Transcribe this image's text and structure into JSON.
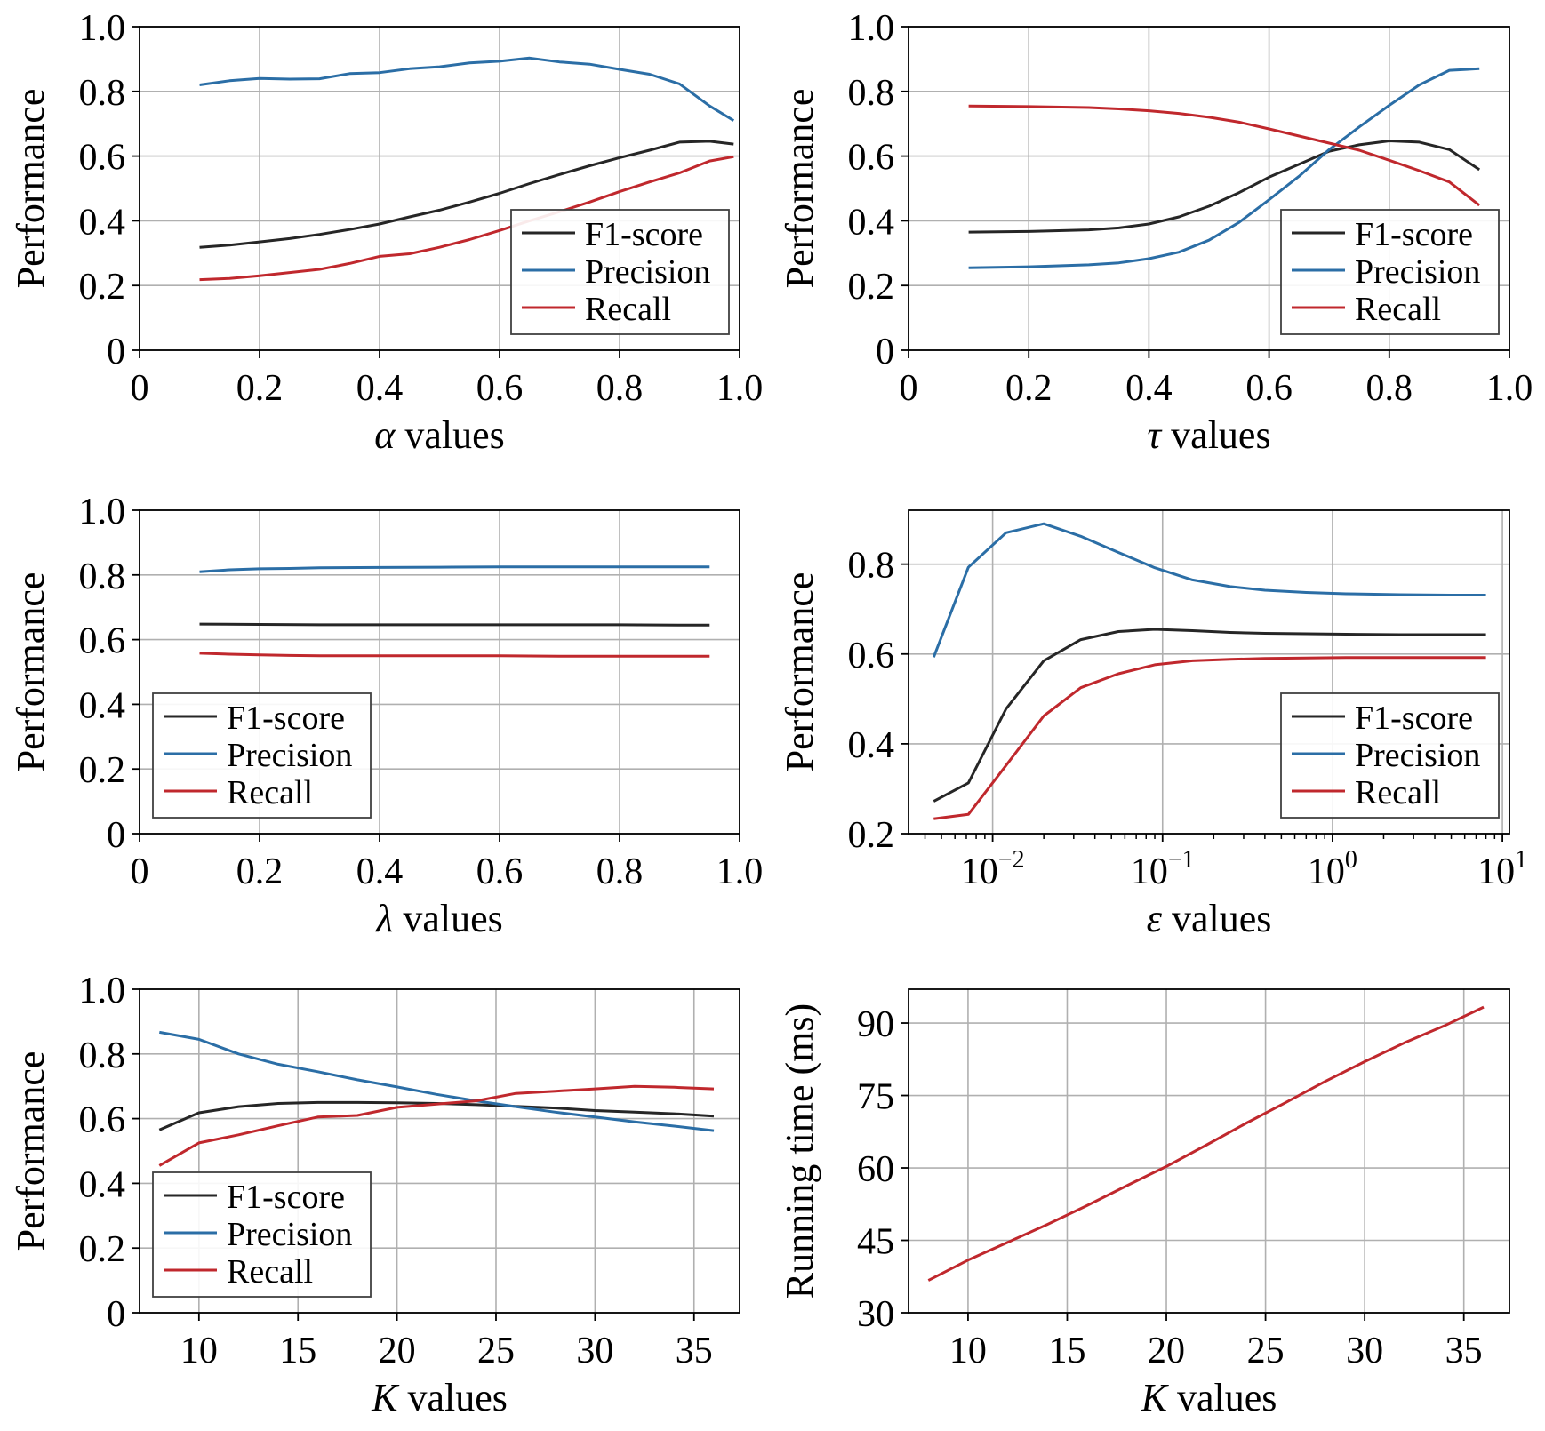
{
  "colors": {
    "f1": "#262626",
    "precision": "#2b6ea6",
    "recall": "#c0282d",
    "grid": "#b0b0b0",
    "legend_border": "#404040"
  },
  "chart_data": [
    {
      "type": "line",
      "xlabel_symbol": "α",
      "xlabel_text": " values",
      "ylabel": "Performance",
      "xscale": "linear",
      "xlim": [
        0,
        1.0
      ],
      "ylim": [
        0,
        1.0
      ],
      "xticks": [
        0,
        0.2,
        0.4,
        0.6,
        0.8,
        1.0
      ],
      "xtick_labels": [
        "0",
        "0.2",
        "0.4",
        "0.6",
        "0.8",
        "1.0"
      ],
      "yticks": [
        0,
        0.2,
        0.4,
        0.6,
        0.8,
        1.0
      ],
      "ytick_labels": [
        "0",
        "0.2",
        "0.4",
        "0.6",
        "0.8",
        "1.0"
      ],
      "grid": true,
      "legend": "bottom-right",
      "series": [
        {
          "name": "F1-score",
          "color_key": "f1",
          "x": [
            0.1,
            0.15,
            0.2,
            0.25,
            0.3,
            0.35,
            0.4,
            0.45,
            0.5,
            0.55,
            0.6,
            0.65,
            0.7,
            0.75,
            0.8,
            0.85,
            0.9,
            0.95,
            0.99
          ],
          "y": [
            0.318,
            0.325,
            0.335,
            0.345,
            0.358,
            0.373,
            0.39,
            0.412,
            0.433,
            0.458,
            0.485,
            0.515,
            0.543,
            0.57,
            0.595,
            0.618,
            0.643,
            0.646,
            0.637
          ]
        },
        {
          "name": "Precision",
          "color_key": "precision",
          "x": [
            0.1,
            0.15,
            0.2,
            0.25,
            0.3,
            0.35,
            0.4,
            0.45,
            0.5,
            0.55,
            0.6,
            0.65,
            0.7,
            0.75,
            0.8,
            0.85,
            0.9,
            0.95,
            0.99
          ],
          "y": [
            0.82,
            0.833,
            0.84,
            0.838,
            0.839,
            0.855,
            0.858,
            0.87,
            0.876,
            0.888,
            0.893,
            0.903,
            0.891,
            0.884,
            0.868,
            0.853,
            0.823,
            0.755,
            0.71
          ]
        },
        {
          "name": "Recall",
          "color_key": "recall",
          "x": [
            0.1,
            0.15,
            0.2,
            0.25,
            0.3,
            0.35,
            0.4,
            0.45,
            0.5,
            0.55,
            0.6,
            0.65,
            0.7,
            0.75,
            0.8,
            0.85,
            0.9,
            0.95,
            0.99
          ],
          "y": [
            0.218,
            0.222,
            0.23,
            0.24,
            0.25,
            0.268,
            0.29,
            0.298,
            0.318,
            0.342,
            0.37,
            0.4,
            0.428,
            0.458,
            0.49,
            0.52,
            0.548,
            0.585,
            0.598
          ]
        }
      ]
    },
    {
      "type": "line",
      "xlabel_symbol": "τ",
      "xlabel_text": " values",
      "ylabel": "Performance",
      "xscale": "linear",
      "xlim": [
        0,
        1.0
      ],
      "ylim": [
        0,
        1.0
      ],
      "xticks": [
        0,
        0.2,
        0.4,
        0.6,
        0.8,
        1.0
      ],
      "xtick_labels": [
        "0",
        "0.2",
        "0.4",
        "0.6",
        "0.8",
        "1.0"
      ],
      "yticks": [
        0,
        0.2,
        0.4,
        0.6,
        0.8,
        1.0
      ],
      "ytick_labels": [
        "0",
        "0.2",
        "0.4",
        "0.6",
        "0.8",
        "1.0"
      ],
      "grid": true,
      "legend": "bottom-right",
      "series": [
        {
          "name": "F1-score",
          "color_key": "f1",
          "x": [
            0.1,
            0.2,
            0.3,
            0.35,
            0.4,
            0.45,
            0.5,
            0.55,
            0.6,
            0.65,
            0.7,
            0.75,
            0.8,
            0.85,
            0.9,
            0.95
          ],
          "y": [
            0.365,
            0.367,
            0.372,
            0.378,
            0.39,
            0.412,
            0.445,
            0.487,
            0.535,
            0.575,
            0.615,
            0.635,
            0.647,
            0.643,
            0.62,
            0.558
          ]
        },
        {
          "name": "Precision",
          "color_key": "precision",
          "x": [
            0.1,
            0.2,
            0.3,
            0.35,
            0.4,
            0.45,
            0.5,
            0.55,
            0.6,
            0.65,
            0.7,
            0.75,
            0.8,
            0.85,
            0.9,
            0.95
          ],
          "y": [
            0.255,
            0.258,
            0.264,
            0.27,
            0.283,
            0.303,
            0.34,
            0.395,
            0.465,
            0.538,
            0.62,
            0.69,
            0.757,
            0.82,
            0.865,
            0.87
          ]
        },
        {
          "name": "Recall",
          "color_key": "recall",
          "x": [
            0.1,
            0.2,
            0.3,
            0.35,
            0.4,
            0.45,
            0.5,
            0.55,
            0.6,
            0.65,
            0.7,
            0.75,
            0.8,
            0.85,
            0.9,
            0.95
          ],
          "y": [
            0.755,
            0.753,
            0.75,
            0.746,
            0.74,
            0.732,
            0.72,
            0.705,
            0.684,
            0.662,
            0.64,
            0.618,
            0.587,
            0.555,
            0.52,
            0.448
          ]
        }
      ]
    },
    {
      "type": "line",
      "xlabel_symbol": "λ",
      "xlabel_text": " values",
      "ylabel": "Performance",
      "xscale": "linear",
      "xlim": [
        0,
        1.0
      ],
      "ylim": [
        0,
        1.0
      ],
      "xticks": [
        0,
        0.2,
        0.4,
        0.6,
        0.8,
        1.0
      ],
      "xtick_labels": [
        "0",
        "0.2",
        "0.4",
        "0.6",
        "0.8",
        "1.0"
      ],
      "yticks": [
        0,
        0.2,
        0.4,
        0.6,
        0.8,
        1.0
      ],
      "ytick_labels": [
        "0",
        "0.2",
        "0.4",
        "0.6",
        "0.8",
        "1.0"
      ],
      "grid": true,
      "legend": "bottom-left",
      "series": [
        {
          "name": "F1-score",
          "color_key": "f1",
          "x": [
            0.1,
            0.2,
            0.3,
            0.4,
            0.5,
            0.6,
            0.7,
            0.8,
            0.9,
            0.95
          ],
          "y": [
            0.648,
            0.647,
            0.646,
            0.646,
            0.646,
            0.646,
            0.646,
            0.646,
            0.645,
            0.645
          ]
        },
        {
          "name": "Precision",
          "color_key": "precision",
          "x": [
            0.1,
            0.15,
            0.2,
            0.25,
            0.3,
            0.4,
            0.5,
            0.6,
            0.7,
            0.8,
            0.9,
            0.95
          ],
          "y": [
            0.81,
            0.816,
            0.819,
            0.82,
            0.822,
            0.823,
            0.824,
            0.825,
            0.825,
            0.825,
            0.825,
            0.825
          ]
        },
        {
          "name": "Recall",
          "color_key": "recall",
          "x": [
            0.1,
            0.15,
            0.2,
            0.25,
            0.3,
            0.4,
            0.5,
            0.6,
            0.7,
            0.8,
            0.9,
            0.95
          ],
          "y": [
            0.558,
            0.555,
            0.553,
            0.551,
            0.55,
            0.55,
            0.55,
            0.55,
            0.549,
            0.549,
            0.549,
            0.549
          ]
        }
      ]
    },
    {
      "type": "line",
      "xlabel_symbol": "ε",
      "xlabel_text": " values",
      "ylabel": "Performance",
      "xscale": "log",
      "xlim": [
        0.0032,
        11
      ],
      "ylim": [
        0.2,
        0.92
      ],
      "xticks": [
        0.01,
        0.1,
        1,
        10
      ],
      "xtick_base": "10",
      "xtick_exponents": [
        "−2",
        "−1",
        "0",
        "1"
      ],
      "yticks": [
        0.2,
        0.4,
        0.6,
        0.8
      ],
      "ytick_labels": [
        "0.2",
        "0.4",
        "0.6",
        "0.8"
      ],
      "grid": true,
      "legend": "bottom-right",
      "series": [
        {
          "name": "F1-score",
          "color_key": "f1",
          "x": [
            0.0045,
            0.0072,
            0.012,
            0.02,
            0.033,
            0.055,
            0.09,
            0.15,
            0.25,
            0.4,
            0.7,
            1.2,
            2.5,
            5,
            8
          ],
          "y": [
            0.272,
            0.313,
            0.478,
            0.585,
            0.632,
            0.65,
            0.655,
            0.652,
            0.648,
            0.646,
            0.645,
            0.644,
            0.643,
            0.643,
            0.643
          ]
        },
        {
          "name": "Precision",
          "color_key": "precision",
          "x": [
            0.0045,
            0.0072,
            0.012,
            0.02,
            0.033,
            0.055,
            0.09,
            0.15,
            0.25,
            0.4,
            0.7,
            1.2,
            2.5,
            5,
            8
          ],
          "y": [
            0.593,
            0.793,
            0.87,
            0.89,
            0.862,
            0.826,
            0.792,
            0.765,
            0.75,
            0.742,
            0.737,
            0.734,
            0.732,
            0.731,
            0.731
          ]
        },
        {
          "name": "Recall",
          "color_key": "recall",
          "x": [
            0.0045,
            0.0072,
            0.012,
            0.02,
            0.033,
            0.055,
            0.09,
            0.15,
            0.25,
            0.4,
            0.7,
            1.2,
            2.5,
            5,
            8
          ],
          "y": [
            0.233,
            0.243,
            0.352,
            0.462,
            0.525,
            0.556,
            0.576,
            0.585,
            0.588,
            0.59,
            0.591,
            0.592,
            0.592,
            0.592,
            0.592
          ]
        }
      ]
    },
    {
      "type": "line",
      "xlabel_symbol": "K",
      "xlabel_text": " values",
      "ylabel": "Performance",
      "xscale": "linear",
      "xlim": [
        7,
        37.3
      ],
      "ylim": [
        0,
        1.0
      ],
      "xticks": [
        10,
        15,
        20,
        25,
        30,
        35
      ],
      "xtick_labels": [
        "10",
        "15",
        "20",
        "25",
        "30",
        "35"
      ],
      "yticks": [
        0,
        0.2,
        0.4,
        0.6,
        0.8,
        1.0
      ],
      "ytick_labels": [
        "0",
        "0.2",
        "0.4",
        "0.6",
        "0.8",
        "1.0"
      ],
      "grid": true,
      "legend": "bottom-left",
      "series": [
        {
          "name": "F1-score",
          "color_key": "f1",
          "x": [
            8,
            10,
            12,
            14,
            16,
            18,
            20,
            22,
            24,
            26,
            28,
            30,
            32,
            34,
            36
          ],
          "y": [
            0.565,
            0.618,
            0.637,
            0.647,
            0.65,
            0.65,
            0.649,
            0.647,
            0.643,
            0.638,
            0.633,
            0.625,
            0.62,
            0.615,
            0.608
          ]
        },
        {
          "name": "Precision",
          "color_key": "precision",
          "x": [
            8,
            10,
            12,
            14,
            16,
            18,
            20,
            22,
            24,
            26,
            28,
            30,
            32,
            34,
            36
          ],
          "y": [
            0.867,
            0.845,
            0.8,
            0.768,
            0.745,
            0.72,
            0.698,
            0.675,
            0.655,
            0.637,
            0.62,
            0.605,
            0.59,
            0.577,
            0.563
          ]
        },
        {
          "name": "Recall",
          "color_key": "recall",
          "x": [
            8,
            10,
            12,
            14,
            16,
            18,
            20,
            22,
            24,
            26,
            28,
            30,
            32,
            34,
            36
          ],
          "y": [
            0.455,
            0.525,
            0.55,
            0.578,
            0.605,
            0.61,
            0.635,
            0.645,
            0.655,
            0.678,
            0.685,
            0.692,
            0.7,
            0.697,
            0.692
          ]
        }
      ]
    },
    {
      "type": "line",
      "xlabel_symbol": "K",
      "xlabel_text": " values",
      "ylabel": "Running time (ms)",
      "xscale": "linear",
      "xlim": [
        7,
        37.3
      ],
      "ylim": [
        30,
        97
      ],
      "xticks": [
        10,
        15,
        20,
        25,
        30,
        35
      ],
      "xtick_labels": [
        "10",
        "15",
        "20",
        "25",
        "30",
        "35"
      ],
      "yticks": [
        30,
        45,
        60,
        75,
        90
      ],
      "ytick_labels": [
        "30",
        "45",
        "60",
        "75",
        "90"
      ],
      "grid": true,
      "legend": "none",
      "series": [
        {
          "color_key": "recall",
          "x": [
            8,
            10,
            12,
            14,
            16,
            18,
            20,
            22,
            24,
            26,
            28,
            30,
            32,
            34,
            36
          ],
          "y": [
            36.7,
            40.9,
            44.6,
            48.3,
            52.2,
            56.3,
            60.3,
            64.7,
            69.2,
            73.5,
            77.9,
            82.0,
            85.9,
            89.4,
            93.3
          ]
        }
      ]
    }
  ]
}
